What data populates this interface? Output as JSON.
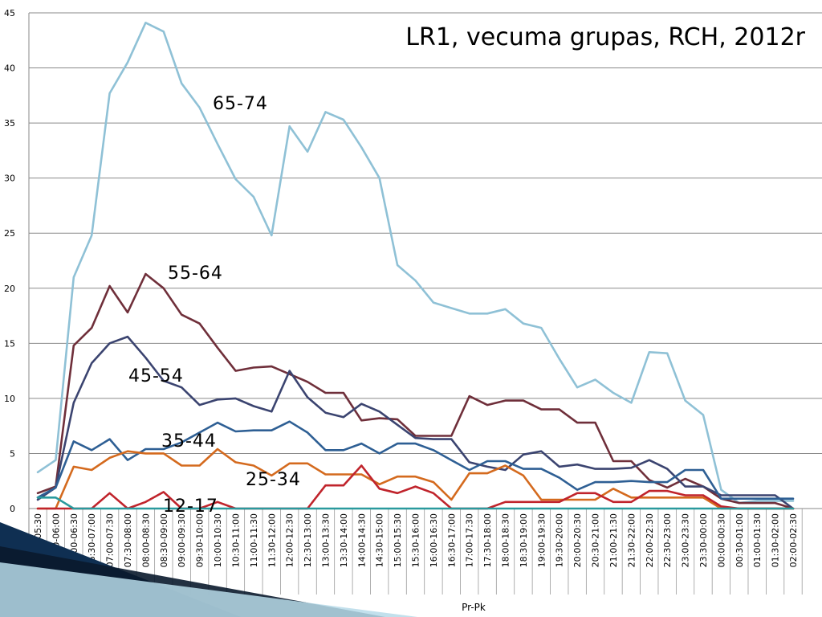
{
  "chart_data": {
    "type": "line",
    "title": "LR1, vecuma grupas, RCH, 2012r",
    "xlabel": "Pr-Pk",
    "ylabel": "",
    "ylim": [
      0,
      45
    ],
    "yticks": [
      0,
      5,
      10,
      15,
      20,
      25,
      30,
      35,
      40,
      45
    ],
    "grid": true,
    "categories": [
      "05:00-05:30",
      "05:30-06:00",
      "06:00-06:30",
      "06:30-07:00",
      "07:00-07:30",
      "07:30-08:00",
      "08:00-08:30",
      "08:30-09:00",
      "09:00-09:30",
      "09:30-10:00",
      "10:00-10:30",
      "10:30-11:00",
      "11:00-11:30",
      "11:30-12:00",
      "12:00-12:30",
      "12:30-13:00",
      "13:00-13:30",
      "13:30-14:00",
      "14:00-14:30",
      "14:30-15:00",
      "15:00-15:30",
      "15:30-16:00",
      "16:00-16:30",
      "16:30-17:00",
      "17:00-17:30",
      "17:30-18:00",
      "18:00-18:30",
      "18:30-19:00",
      "19:00-19:30",
      "19:30-20:00",
      "20:00-20:30",
      "20:30-21:00",
      "21:00-21:30",
      "21:30-22:00",
      "22:00-22:30",
      "22:30-23:00",
      "23:00-23:30",
      "23:30-00:00",
      "00:00-00:30",
      "00:30-01:00",
      "01:00-01:30",
      "01:30-02:00",
      "02:00-02:30"
    ],
    "series": [
      {
        "name": "65-74",
        "color": "#8fc1d6",
        "values": [
          3.3,
          4.4,
          21.0,
          24.8,
          37.7,
          40.5,
          44.1,
          43.3,
          38.6,
          36.4,
          33.1,
          29.9,
          28.3,
          24.8,
          34.7,
          32.4,
          36.0,
          35.3,
          32.8,
          30.0,
          22.1,
          20.7,
          18.7,
          18.2,
          17.7,
          17.7,
          18.1,
          16.8,
          16.4,
          13.6,
          11.0,
          11.7,
          10.5,
          9.6,
          14.2,
          14.1,
          9.8,
          8.5,
          1.7,
          0.5,
          0.7,
          0.7,
          0.7
        ]
      },
      {
        "name": "55-64",
        "color": "#6f2f3a",
        "values": [
          1.4,
          2.0,
          14.8,
          16.4,
          20.2,
          17.8,
          21.3,
          20.0,
          17.6,
          16.8,
          14.6,
          12.5,
          12.8,
          12.9,
          12.2,
          11.5,
          10.5,
          10.5,
          8.0,
          8.2,
          8.1,
          6.6,
          6.6,
          6.6,
          10.2,
          9.4,
          9.8,
          9.8,
          9.0,
          9.0,
          7.8,
          7.8,
          4.3,
          4.3,
          2.6,
          1.9,
          2.7,
          2.0,
          0.9,
          0.5,
          0.5,
          0.5,
          0
        ]
      },
      {
        "name": "45-54",
        "color": "#3b4470",
        "values": [
          0.8,
          1.9,
          9.6,
          13.2,
          15.0,
          15.6,
          13.7,
          11.6,
          11.0,
          9.4,
          9.9,
          10.0,
          9.3,
          8.8,
          12.5,
          10.1,
          8.7,
          8.3,
          9.5,
          8.8,
          7.6,
          6.4,
          6.3,
          6.3,
          4.2,
          3.8,
          3.5,
          4.9,
          5.2,
          3.8,
          4.0,
          3.6,
          3.6,
          3.7,
          4.4,
          3.6,
          2.0,
          2.0,
          1.2,
          1.2,
          1.2,
          1.2,
          0
        ]
      },
      {
        "name": "35-44",
        "color": "#2e5f94",
        "values": [
          1.0,
          1.9,
          6.1,
          5.3,
          6.3,
          4.4,
          5.4,
          5.4,
          6.0,
          6.9,
          7.8,
          7.0,
          7.1,
          7.1,
          7.9,
          6.9,
          5.3,
          5.3,
          5.9,
          5.0,
          5.9,
          5.9,
          5.3,
          4.4,
          3.5,
          4.3,
          4.3,
          3.6,
          3.6,
          2.8,
          1.7,
          2.4,
          2.4,
          2.5,
          2.4,
          2.4,
          3.5,
          3.5,
          0.9,
          0.9,
          0.9,
          0.9,
          0.9
        ]
      },
      {
        "name": "25-34",
        "color": "#d46a1e",
        "values": [
          0,
          0,
          3.8,
          3.5,
          4.6,
          5.2,
          5.0,
          5.0,
          3.9,
          3.9,
          5.4,
          4.2,
          3.9,
          3.0,
          4.1,
          4.1,
          3.1,
          3.1,
          3.1,
          2.2,
          2.9,
          2.9,
          2.4,
          0.8,
          3.2,
          3.2,
          3.9,
          3.0,
          0.8,
          0.8,
          0.8,
          0.8,
          1.8,
          1.0,
          1.0,
          1.0,
          1.0,
          1.0,
          0,
          0,
          0,
          0,
          0
        ]
      },
      {
        "name": "12-17",
        "color": "#c0242c",
        "values": [
          0,
          0,
          0,
          0,
          1.4,
          0,
          0.6,
          1.5,
          0,
          0,
          0.6,
          0,
          0,
          0,
          0,
          0,
          2.1,
          2.1,
          3.9,
          1.8,
          1.4,
          2.0,
          1.4,
          0,
          0,
          0,
          0.6,
          0.6,
          0.6,
          0.6,
          1.4,
          1.4,
          0.6,
          0.6,
          1.6,
          1.6,
          1.2,
          1.2,
          0.2,
          0,
          0,
          0,
          0
        ]
      },
      {
        "name": "",
        "color": "#2a9a9e",
        "values": [
          1.0,
          1.0,
          0,
          0,
          0,
          0,
          0,
          0,
          0,
          0,
          0,
          0,
          0,
          0,
          0,
          0,
          0,
          0,
          0,
          0,
          0,
          0,
          0,
          0,
          0,
          0,
          0,
          0,
          0,
          0,
          0,
          0,
          0,
          0,
          0,
          0,
          0,
          0,
          0,
          0,
          0,
          0,
          0
        ]
      }
    ]
  }
}
